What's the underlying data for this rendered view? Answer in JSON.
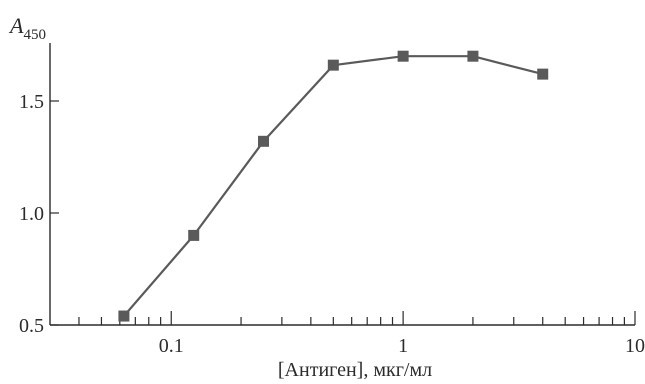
{
  "chart_data": {
    "type": "line",
    "xscale": "log",
    "xlim": [
      0.03,
      10
    ],
    "ylim": [
      0.5,
      1.75
    ],
    "xlabel": "[Антиген], мкг/мл",
    "ylabel": "A",
    "ylabel_sub": "450",
    "x_ticks": [
      {
        "value": 0.1,
        "label": "0.1"
      },
      {
        "value": 1,
        "label": "1"
      },
      {
        "value": 10,
        "label": "10"
      }
    ],
    "y_ticks": [
      {
        "value": 0.5,
        "label": "0.5"
      },
      {
        "value": 1.0,
        "label": "1.0"
      },
      {
        "value": 1.5,
        "label": "1.5"
      }
    ],
    "x_minor_ticks": [
      0.04,
      0.05,
      0.06,
      0.07,
      0.08,
      0.09,
      0.2,
      0.3,
      0.4,
      0.5,
      0.6,
      0.7,
      0.8,
      0.9,
      2,
      3,
      4,
      5,
      6,
      7,
      8,
      9
    ],
    "grid": false,
    "series": [
      {
        "color": "#5a5a5a",
        "marker": "square",
        "x": [
          0.0625,
          0.125,
          0.25,
          0.5,
          1,
          2,
          4
        ],
        "y": [
          0.54,
          0.9,
          1.32,
          1.66,
          1.7,
          1.7,
          1.62
        ]
      }
    ]
  }
}
